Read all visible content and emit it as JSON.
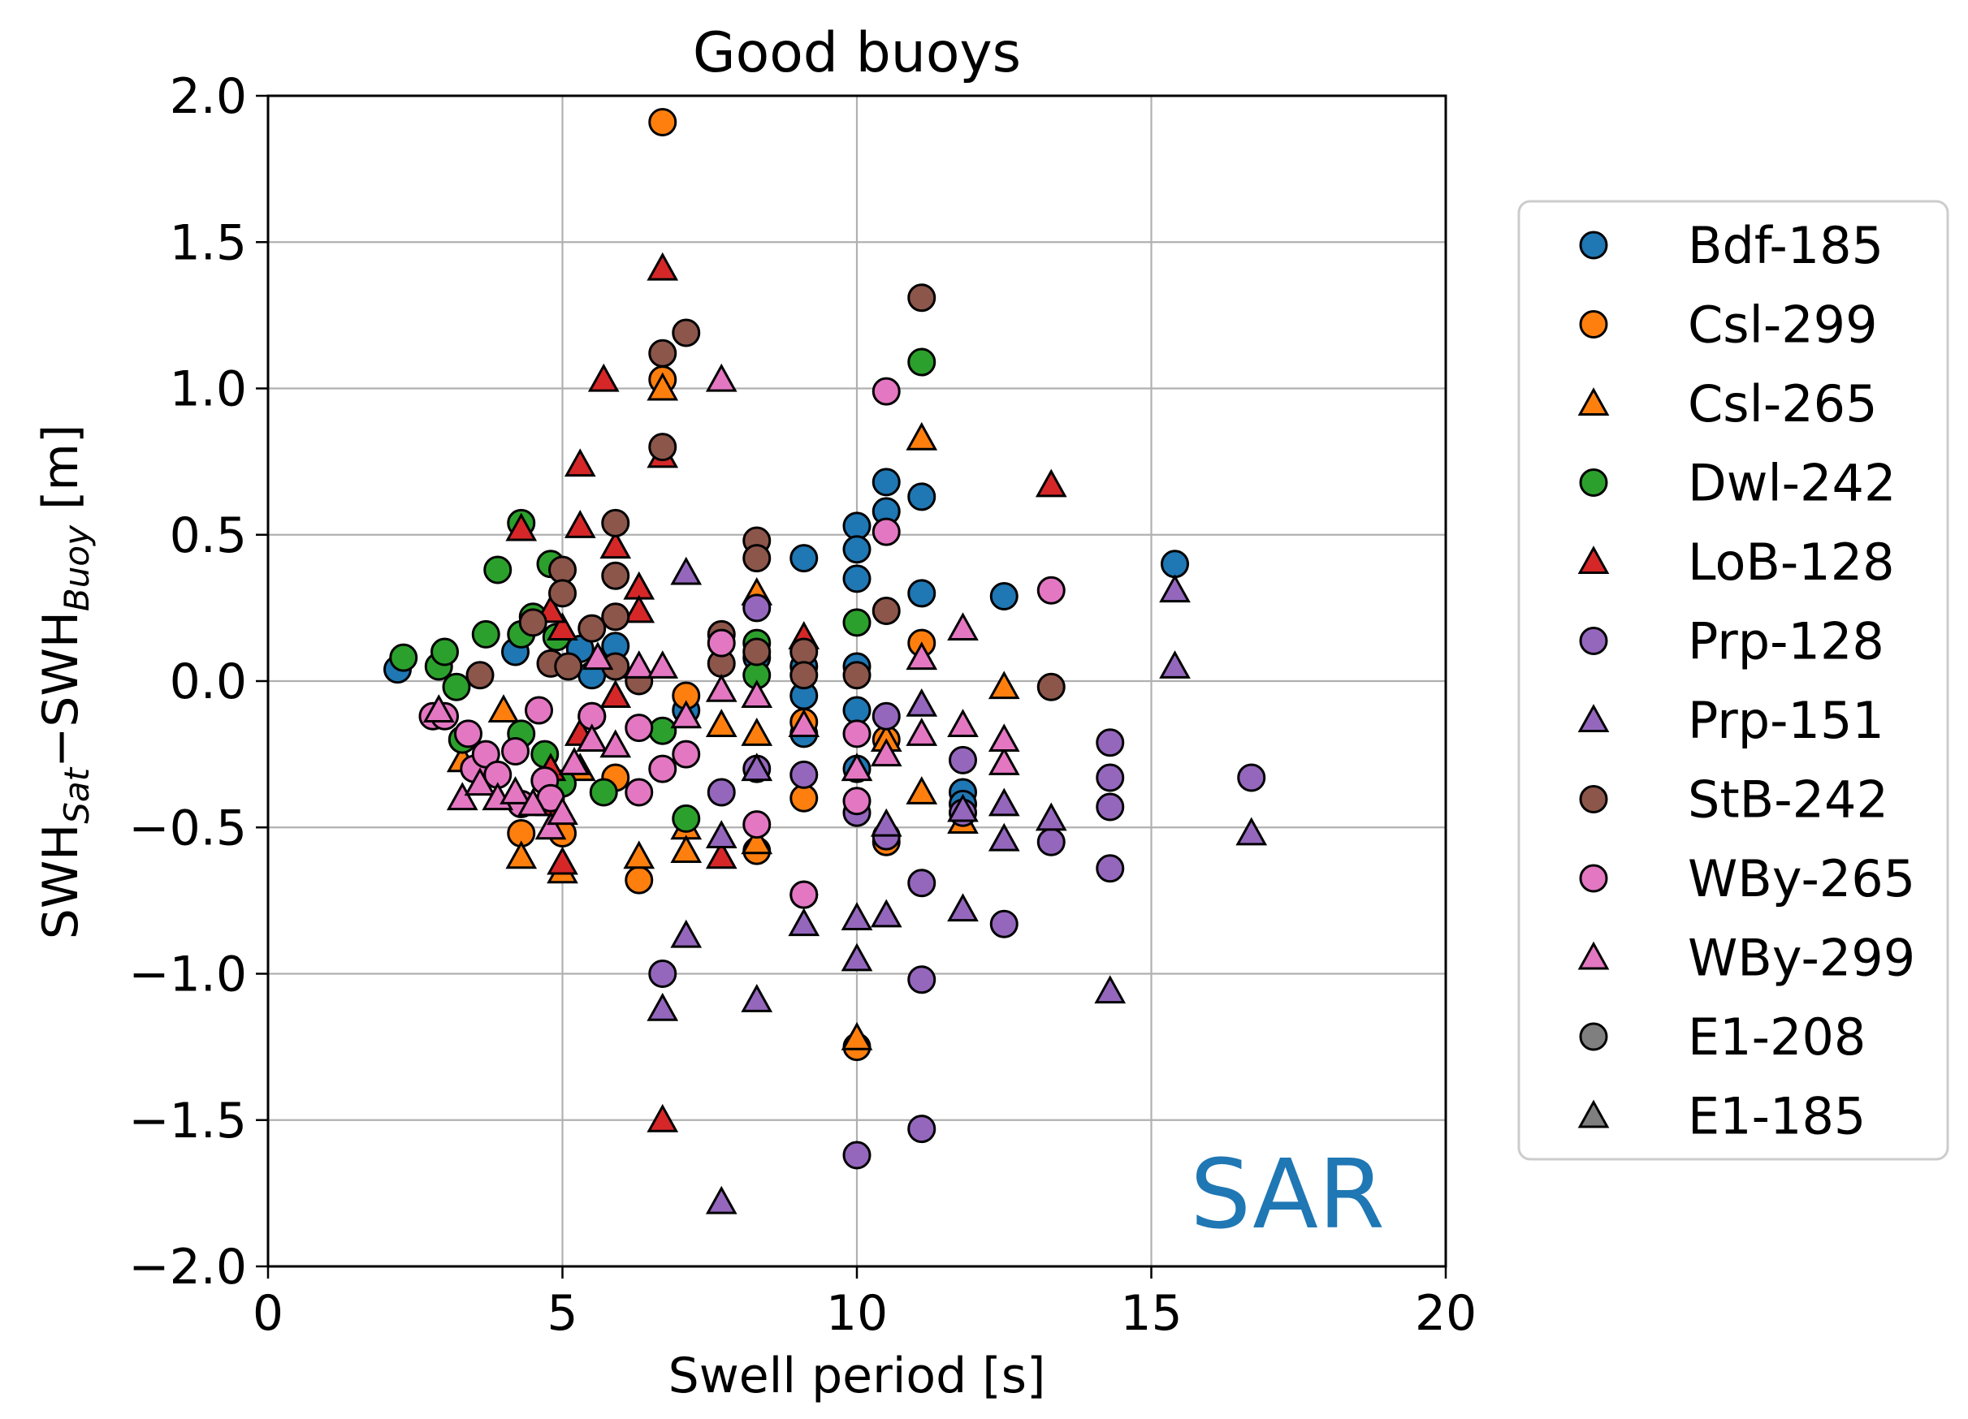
{
  "chart_data": {
    "type": "scatter",
    "title": "Good buoys",
    "xlabel": "Swell period [s]",
    "ylabel": {
      "base1": "SWH",
      "sub1": "Sat",
      "sep": "−",
      "base2": "SWH",
      "sub2": "Buoy",
      "unit": " [m]"
    },
    "xlim": [
      0,
      20
    ],
    "ylim": [
      -2.0,
      2.0
    ],
    "xticks": [
      0,
      5,
      10,
      15,
      20
    ],
    "yticks": [
      -2.0,
      -1.5,
      -1.0,
      -0.5,
      0.0,
      0.5,
      1.0,
      1.5,
      2.0
    ],
    "xtick_labels": [
      "0",
      "5",
      "10",
      "15",
      "20"
    ],
    "ytick_labels": [
      "−2.0",
      "−1.5",
      "−1.0",
      "−0.5",
      "0.0",
      "0.5",
      "1.0",
      "1.5",
      "2.0"
    ],
    "grid": true,
    "legend_position": "outside-right",
    "annotation": {
      "text": "SAR",
      "color": "#1f77b4"
    },
    "series": [
      {
        "name": "Bdf-185",
        "marker": "circle",
        "color": "#1f77b4",
        "points": [
          [
            2.2,
            0.04
          ],
          [
            4.2,
            0.1
          ],
          [
            5.3,
            0.11
          ],
          [
            5.9,
            0.12
          ],
          [
            5.5,
            0.02
          ],
          [
            7.1,
            -0.1
          ],
          [
            8.3,
            0.08
          ],
          [
            9.1,
            0.42
          ],
          [
            9.1,
            0.05
          ],
          [
            9.1,
            -0.05
          ],
          [
            9.1,
            -0.18
          ],
          [
            10.0,
            0.53
          ],
          [
            10.0,
            0.45
          ],
          [
            10.0,
            0.35
          ],
          [
            10.0,
            0.05
          ],
          [
            10.0,
            -0.1
          ],
          [
            10.0,
            -0.3
          ],
          [
            10.5,
            0.68
          ],
          [
            10.5,
            0.58
          ],
          [
            11.1,
            0.63
          ],
          [
            11.1,
            0.3
          ],
          [
            11.8,
            -0.38
          ],
          [
            11.8,
            -0.42
          ],
          [
            12.5,
            0.29
          ],
          [
            15.4,
            0.4
          ]
        ]
      },
      {
        "name": "Csl-299",
        "marker": "circle",
        "color": "#ff7f0e",
        "points": [
          [
            6.7,
            1.91
          ],
          [
            6.7,
            1.03
          ],
          [
            4.3,
            -0.52
          ],
          [
            5.0,
            -0.52
          ],
          [
            5.9,
            -0.33
          ],
          [
            6.3,
            -0.68
          ],
          [
            7.1,
            -0.05
          ],
          [
            8.3,
            -0.58
          ],
          [
            9.1,
            -0.14
          ],
          [
            9.1,
            -0.4
          ],
          [
            10.0,
            -1.25
          ],
          [
            10.5,
            -0.55
          ],
          [
            10.5,
            -0.2
          ],
          [
            11.1,
            0.13
          ]
        ]
      },
      {
        "name": "Csl-265",
        "marker": "triangle",
        "color": "#ff7f0e",
        "points": [
          [
            6.7,
            1.0
          ],
          [
            3.3,
            -0.27
          ],
          [
            4.0,
            -0.1
          ],
          [
            4.3,
            -0.6
          ],
          [
            5.0,
            -0.65
          ],
          [
            5.3,
            -0.3
          ],
          [
            6.3,
            -0.6
          ],
          [
            7.1,
            -0.5
          ],
          [
            7.1,
            -0.58
          ],
          [
            7.7,
            -0.15
          ],
          [
            8.3,
            0.3
          ],
          [
            8.3,
            -0.18
          ],
          [
            8.3,
            -0.55
          ],
          [
            10.0,
            -1.22
          ],
          [
            10.5,
            -0.2
          ],
          [
            11.1,
            0.83
          ],
          [
            11.1,
            -0.38
          ],
          [
            11.8,
            -0.48
          ],
          [
            12.5,
            -0.02
          ]
        ]
      },
      {
        "name": "Dwl-242",
        "marker": "circle",
        "color": "#2ca02c",
        "points": [
          [
            2.3,
            0.08
          ],
          [
            2.9,
            0.05
          ],
          [
            3.0,
            0.1
          ],
          [
            3.2,
            -0.02
          ],
          [
            3.3,
            -0.2
          ],
          [
            3.7,
            0.16
          ],
          [
            3.9,
            0.38
          ],
          [
            4.3,
            0.54
          ],
          [
            4.3,
            0.16
          ],
          [
            4.5,
            0.22
          ],
          [
            4.8,
            0.4
          ],
          [
            4.9,
            0.15
          ],
          [
            4.3,
            -0.18
          ],
          [
            4.7,
            -0.25
          ],
          [
            5.0,
            -0.35
          ],
          [
            5.5,
            -0.12
          ],
          [
            5.7,
            -0.38
          ],
          [
            6.7,
            -0.17
          ],
          [
            7.1,
            -0.47
          ],
          [
            8.3,
            0.13
          ],
          [
            8.3,
            0.02
          ],
          [
            10.0,
            0.2
          ],
          [
            11.1,
            1.09
          ]
        ]
      },
      {
        "name": "LoB-128",
        "marker": "triangle",
        "color": "#d62728",
        "points": [
          [
            5.7,
            1.03
          ],
          [
            6.7,
            1.41
          ],
          [
            6.7,
            0.77
          ],
          [
            5.3,
            0.74
          ],
          [
            5.3,
            0.53
          ],
          [
            5.9,
            0.46
          ],
          [
            6.3,
            0.32
          ],
          [
            6.3,
            0.24
          ],
          [
            5.0,
            0.18
          ],
          [
            4.3,
            0.52
          ],
          [
            4.8,
            0.24
          ],
          [
            5.3,
            -0.18
          ],
          [
            5.9,
            -0.05
          ],
          [
            4.8,
            -0.3
          ],
          [
            4.8,
            -0.42
          ],
          [
            5.0,
            -0.62
          ],
          [
            6.7,
            -1.5
          ],
          [
            7.7,
            -0.6
          ],
          [
            9.1,
            0.15
          ],
          [
            13.3,
            0.67
          ]
        ]
      },
      {
        "name": "Prp-128",
        "marker": "circle",
        "color": "#9467bd",
        "points": [
          [
            6.7,
            -1.0
          ],
          [
            7.7,
            -0.38
          ],
          [
            8.3,
            0.25
          ],
          [
            8.3,
            -0.3
          ],
          [
            9.1,
            -0.32
          ],
          [
            9.1,
            -0.73
          ],
          [
            10.0,
            -0.45
          ],
          [
            10.0,
            -1.62
          ],
          [
            10.5,
            -0.12
          ],
          [
            10.5,
            -0.53
          ],
          [
            11.1,
            -0.69
          ],
          [
            11.1,
            -1.02
          ],
          [
            11.1,
            -1.53
          ],
          [
            11.8,
            -0.27
          ],
          [
            11.8,
            -0.45
          ],
          [
            12.5,
            -0.83
          ],
          [
            13.3,
            -0.55
          ],
          [
            14.3,
            -0.21
          ],
          [
            14.3,
            -0.33
          ],
          [
            14.3,
            -0.43
          ],
          [
            14.3,
            -0.64
          ],
          [
            16.7,
            -0.33
          ]
        ]
      },
      {
        "name": "Prp-151",
        "marker": "triangle",
        "color": "#9467bd",
        "points": [
          [
            6.7,
            -1.12
          ],
          [
            7.1,
            -0.87
          ],
          [
            7.7,
            -0.53
          ],
          [
            7.7,
            -1.78
          ],
          [
            8.3,
            -0.3
          ],
          [
            8.3,
            -1.09
          ],
          [
            9.1,
            -0.83
          ],
          [
            10.0,
            -0.81
          ],
          [
            10.0,
            -0.95
          ],
          [
            10.5,
            -0.49
          ],
          [
            10.5,
            -0.8
          ],
          [
            11.1,
            -0.08
          ],
          [
            11.8,
            -0.44
          ],
          [
            11.8,
            -0.78
          ],
          [
            12.5,
            -0.42
          ],
          [
            12.5,
            -0.54
          ],
          [
            13.3,
            -0.47
          ],
          [
            14.3,
            -1.06
          ],
          [
            15.4,
            0.31
          ],
          [
            15.4,
            0.05
          ],
          [
            16.7,
            -0.52
          ],
          [
            7.1,
            0.37
          ]
        ]
      },
      {
        "name": "StB-242",
        "marker": "circle",
        "color": "#8c564b",
        "points": [
          [
            3.6,
            0.02
          ],
          [
            4.5,
            0.2
          ],
          [
            5.0,
            0.38
          ],
          [
            5.0,
            0.3
          ],
          [
            4.8,
            0.06
          ],
          [
            5.1,
            0.05
          ],
          [
            5.5,
            0.18
          ],
          [
            5.9,
            0.54
          ],
          [
            5.9,
            0.36
          ],
          [
            5.9,
            0.22
          ],
          [
            5.9,
            0.05
          ],
          [
            6.3,
            0.0
          ],
          [
            6.7,
            1.12
          ],
          [
            6.7,
            0.8
          ],
          [
            7.1,
            1.19
          ],
          [
            7.7,
            0.16
          ],
          [
            7.7,
            0.06
          ],
          [
            8.3,
            0.48
          ],
          [
            8.3,
            0.42
          ],
          [
            8.3,
            0.1
          ],
          [
            9.1,
            0.1
          ],
          [
            9.1,
            0.02
          ],
          [
            10.0,
            0.02
          ],
          [
            10.5,
            0.24
          ],
          [
            11.1,
            1.31
          ],
          [
            13.3,
            -0.02
          ]
        ]
      },
      {
        "name": "WBy-265",
        "marker": "circle",
        "color": "#e377c2",
        "points": [
          [
            2.8,
            -0.12
          ],
          [
            3.0,
            -0.12
          ],
          [
            3.4,
            -0.18
          ],
          [
            3.5,
            -0.3
          ],
          [
            3.7,
            -0.25
          ],
          [
            3.9,
            -0.32
          ],
          [
            4.2,
            -0.24
          ],
          [
            4.3,
            -0.42
          ],
          [
            4.6,
            -0.1
          ],
          [
            4.7,
            -0.34
          ],
          [
            4.8,
            -0.4
          ],
          [
            5.5,
            -0.12
          ],
          [
            6.3,
            -0.38
          ],
          [
            6.3,
            -0.16
          ],
          [
            6.7,
            -0.3
          ],
          [
            7.1,
            -0.25
          ],
          [
            7.7,
            0.13
          ],
          [
            8.3,
            -0.49
          ],
          [
            9.1,
            -0.73
          ],
          [
            10.0,
            -0.18
          ],
          [
            10.0,
            -0.41
          ],
          [
            10.5,
            0.99
          ],
          [
            10.5,
            0.51
          ],
          [
            13.3,
            0.31
          ]
        ]
      },
      {
        "name": "WBy-299",
        "marker": "triangle",
        "color": "#e377c2",
        "points": [
          [
            2.9,
            -0.1
          ],
          [
            3.3,
            -0.4
          ],
          [
            3.6,
            -0.35
          ],
          [
            3.9,
            -0.4
          ],
          [
            4.2,
            -0.38
          ],
          [
            4.5,
            -0.42
          ],
          [
            4.8,
            -0.5
          ],
          [
            5.0,
            -0.45
          ],
          [
            5.2,
            -0.28
          ],
          [
            5.5,
            -0.2
          ],
          [
            5.6,
            0.08
          ],
          [
            5.9,
            -0.22
          ],
          [
            6.3,
            0.05
          ],
          [
            6.7,
            0.05
          ],
          [
            7.1,
            -0.12
          ],
          [
            7.7,
            1.03
          ],
          [
            7.7,
            -0.03
          ],
          [
            8.3,
            -0.05
          ],
          [
            9.1,
            -0.15
          ],
          [
            10.0,
            -0.3
          ],
          [
            10.5,
            -0.25
          ],
          [
            11.1,
            0.08
          ],
          [
            11.1,
            -0.18
          ],
          [
            11.8,
            0.18
          ],
          [
            11.8,
            -0.15
          ],
          [
            12.5,
            -0.28
          ],
          [
            12.5,
            -0.2
          ]
        ]
      },
      {
        "name": "E1-208",
        "marker": "circle",
        "color": "#7f7f7f",
        "points": []
      },
      {
        "name": "E1-185",
        "marker": "triangle",
        "color": "#7f7f7f",
        "points": []
      }
    ]
  }
}
